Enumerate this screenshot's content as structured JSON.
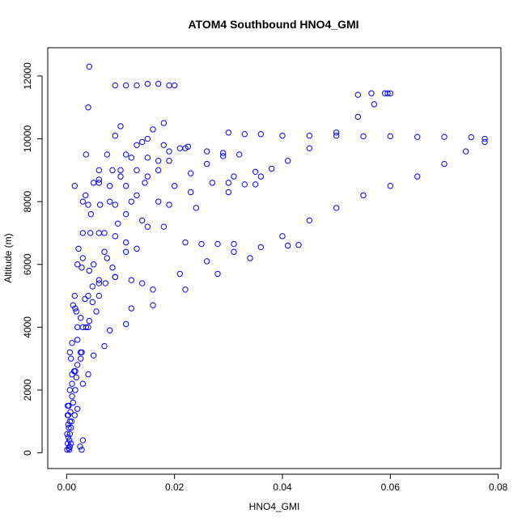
{
  "chart_data": {
    "type": "scatter",
    "title": "ATOM4 Southbound HNO4_GMI",
    "xlabel": "HNO4_GMI",
    "ylabel": "Altitude (m)",
    "xlim": [
      -0.0035,
      0.0805
    ],
    "ylim": [
      -500,
      12900
    ],
    "x_ticks": [
      0.0,
      0.02,
      0.04,
      0.06,
      0.08
    ],
    "x_tick_labels": [
      "0.00",
      "0.02",
      "0.04",
      "0.06",
      "0.08"
    ],
    "y_ticks": [
      0,
      2000,
      4000,
      6000,
      8000,
      10000,
      12000
    ],
    "y_tick_labels": [
      "0",
      "2000",
      "4000",
      "6000",
      "8000",
      "10000",
      "12000"
    ],
    "grid": false,
    "marker": "open-circle",
    "colors": {
      "points": "#0000ff",
      "axes": "#000000"
    },
    "series": [
      {
        "points": [
          [
            0.0005,
            100
          ],
          [
            0.0008,
            800
          ],
          [
            0.0012,
            1600
          ],
          [
            0.0018,
            2400
          ],
          [
            0.0026,
            3200
          ],
          [
            0.0036,
            4000
          ],
          [
            0.0048,
            4800
          ],
          [
            0.006,
            5500
          ],
          [
            0.0075,
            6200
          ],
          [
            0.009,
            6900
          ],
          [
            0.011,
            7600
          ],
          [
            0.013,
            8200
          ],
          [
            0.015,
            8800
          ],
          [
            0.017,
            9300
          ],
          [
            0.019,
            9600
          ],
          [
            0.021,
            9700
          ],
          [
            0.0225,
            9750
          ],
          [
            0.0004,
            150
          ],
          [
            0.0009,
            1000
          ],
          [
            0.0016,
            2000
          ],
          [
            0.0026,
            3000
          ],
          [
            0.004,
            4000
          ],
          [
            0.006,
            5000
          ],
          [
            0.0085,
            5900
          ],
          [
            0.011,
            6700
          ],
          [
            0.014,
            7400
          ],
          [
            0.017,
            8000
          ],
          [
            0.02,
            8500
          ],
          [
            0.023,
            8900
          ],
          [
            0.026,
            9200
          ],
          [
            0.029,
            9450
          ],
          [
            0.0006,
            200
          ],
          [
            0.0015,
            1200
          ],
          [
            0.003,
            2200
          ],
          [
            0.005,
            3100
          ],
          [
            0.008,
            3900
          ],
          [
            0.012,
            4600
          ],
          [
            0.016,
            5200
          ],
          [
            0.021,
            5700
          ],
          [
            0.026,
            6100
          ],
          [
            0.031,
            6400
          ],
          [
            0.036,
            6550
          ],
          [
            0.041,
            6600
          ],
          [
            0.043,
            6620
          ],
          [
            0.0008,
            300
          ],
          [
            0.002,
            1400
          ],
          [
            0.004,
            2500
          ],
          [
            0.007,
            3400
          ],
          [
            0.011,
            4100
          ],
          [
            0.016,
            4700
          ],
          [
            0.022,
            5200
          ],
          [
            0.028,
            5700
          ],
          [
            0.034,
            6200
          ],
          [
            0.04,
            6900
          ],
          [
            0.045,
            7400
          ],
          [
            0.05,
            7800
          ],
          [
            0.055,
            8200
          ],
          [
            0.06,
            8500
          ],
          [
            0.065,
            8800
          ],
          [
            0.07,
            9200
          ],
          [
            0.074,
            9600
          ],
          [
            0.0775,
            9900
          ],
          [
            0.0003,
            500
          ],
          [
            0.0006,
            2000
          ],
          [
            0.001,
            3500
          ],
          [
            0.0015,
            5000
          ],
          [
            0.0022,
            6500
          ],
          [
            0.003,
            8000
          ],
          [
            0.0036,
            9500
          ],
          [
            0.004,
            11000
          ],
          [
            0.0042,
            12300
          ],
          [
            0.0005,
            400
          ],
          [
            0.001,
            2500
          ],
          [
            0.0018,
            4500
          ],
          [
            0.003,
            6200
          ],
          [
            0.0045,
            7600
          ],
          [
            0.006,
            8700
          ],
          [
            0.0075,
            9500
          ],
          [
            0.009,
            10100
          ],
          [
            0.01,
            10400
          ],
          [
            0.0006,
            600
          ],
          [
            0.0014,
            2600
          ],
          [
            0.0026,
            4300
          ],
          [
            0.0042,
            5800
          ],
          [
            0.006,
            7000
          ],
          [
            0.008,
            8000
          ],
          [
            0.01,
            8800
          ],
          [
            0.012,
            9400
          ],
          [
            0.014,
            9900
          ],
          [
            0.016,
            10300
          ],
          [
            0.018,
            10500
          ],
          [
            0.0004,
            800
          ],
          [
            0.001,
            2200
          ],
          [
            0.002,
            3600
          ],
          [
            0.0034,
            4900
          ],
          [
            0.005,
            6000
          ],
          [
            0.007,
            7000
          ],
          [
            0.009,
            7900
          ],
          [
            0.011,
            8500
          ],
          [
            0.013,
            9000
          ],
          [
            0.015,
            9400
          ],
          [
            0.0006,
            1000
          ],
          [
            0.0016,
            2600
          ],
          [
            0.003,
            4000
          ],
          [
            0.0048,
            5300
          ],
          [
            0.007,
            6400
          ],
          [
            0.0095,
            7300
          ],
          [
            0.012,
            8000
          ],
          [
            0.0145,
            8600
          ],
          [
            0.017,
            9000
          ],
          [
            0.019,
            9300
          ],
          [
            0.0003,
            1200
          ],
          [
            0.0008,
            3000
          ],
          [
            0.0016,
            4600
          ],
          [
            0.0028,
            5900
          ],
          [
            0.0044,
            7000
          ],
          [
            0.0062,
            7900
          ],
          [
            0.008,
            8500
          ],
          [
            0.01,
            9000
          ],
          [
            0.0002,
            1500
          ],
          [
            0.0006,
            3200
          ],
          [
            0.0012,
            4700
          ],
          [
            0.002,
            6000
          ],
          [
            0.003,
            7000
          ],
          [
            0.004,
            7900
          ],
          [
            0.005,
            8600
          ],
          [
            0.006,
            9000
          ],
          [
            0.0007,
            1300
          ],
          [
            0.002,
            2800
          ],
          [
            0.0042,
            4200
          ],
          [
            0.0072,
            5400
          ],
          [
            0.011,
            6400
          ],
          [
            0.015,
            7200
          ],
          [
            0.019,
            7900
          ],
          [
            0.023,
            8300
          ],
          [
            0.027,
            8600
          ],
          [
            0.031,
            8800
          ],
          [
            0.035,
            8950
          ],
          [
            0.038,
            9050
          ],
          [
            0.001,
            1800
          ],
          [
            0.0028,
            3200
          ],
          [
            0.0055,
            4500
          ],
          [
            0.009,
            5600
          ],
          [
            0.013,
            6500
          ],
          [
            0.018,
            7200
          ],
          [
            0.024,
            7800
          ],
          [
            0.03,
            8300
          ],
          [
            0.036,
            8800
          ],
          [
            0.041,
            9300
          ],
          [
            0.045,
            9700
          ],
          [
            0.05,
            10200
          ],
          [
            0.054,
            10700
          ],
          [
            0.057,
            11100
          ],
          [
            0.0595,
            11450
          ],
          [
            0.002,
            4000
          ],
          [
            0.004,
            5000
          ],
          [
            0.006,
            5400
          ],
          [
            0.009,
            5600
          ],
          [
            0.012,
            5500
          ],
          [
            0.014,
            5400
          ],
          [
            0.0015,
            8500
          ],
          [
            0.0035,
            8200
          ],
          [
            0.006,
            8600
          ],
          [
            0.0085,
            9000
          ],
          [
            0.011,
            9500
          ],
          [
            0.013,
            9800
          ],
          [
            0.015,
            10000
          ],
          [
            0.009,
            11700
          ],
          [
            0.011,
            11700
          ],
          [
            0.013,
            11700
          ],
          [
            0.015,
            11750
          ],
          [
            0.017,
            11750
          ],
          [
            0.019,
            11700
          ],
          [
            0.02,
            11700
          ],
          [
            0.03,
            10200
          ],
          [
            0.033,
            10150
          ],
          [
            0.036,
            10150
          ],
          [
            0.04,
            10100
          ],
          [
            0.045,
            10100
          ],
          [
            0.05,
            10100
          ],
          [
            0.055,
            10080
          ],
          [
            0.06,
            10080
          ],
          [
            0.065,
            10060
          ],
          [
            0.07,
            10060
          ],
          [
            0.075,
            10050
          ],
          [
            0.0775,
            10000
          ],
          [
            0.054,
            11400
          ],
          [
            0.0565,
            11450
          ],
          [
            0.059,
            11450
          ],
          [
            0.06,
            11450
          ],
          [
            0.018,
            9800
          ],
          [
            0.022,
            9700
          ],
          [
            0.026,
            9600
          ],
          [
            0.029,
            9550
          ],
          [
            0.032,
            9500
          ],
          [
            0.022,
            6700
          ],
          [
            0.025,
            6650
          ],
          [
            0.028,
            6650
          ],
          [
            0.031,
            6650
          ],
          [
            0.03,
            8600
          ],
          [
            0.033,
            8550
          ],
          [
            0.035,
            8550
          ],
          [
            0.0001,
            100
          ],
          [
            0.0002,
            300
          ],
          [
            0.0001,
            600
          ],
          [
            0.0003,
            900
          ],
          [
            0.0002,
            1200
          ],
          [
            0.0004,
            1500
          ],
          [
            0.0025,
            200
          ],
          [
            0.003,
            400
          ],
          [
            0.0028,
            100
          ]
        ]
      }
    ]
  }
}
